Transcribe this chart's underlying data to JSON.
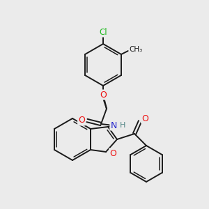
{
  "background_color": "#ebebeb",
  "bond_color": "#1a1a1a",
  "atom_colors": {
    "O": "#ee1111",
    "N": "#2222cc",
    "Cl": "#22bb22",
    "C": "#1a1a1a",
    "H": "#558888"
  },
  "figsize": [
    3.0,
    3.0
  ],
  "dpi": 100
}
